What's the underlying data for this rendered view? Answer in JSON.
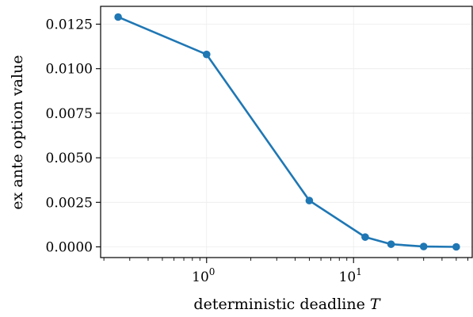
{
  "chart_data": {
    "type": "line",
    "xlabel": "deterministic deadline ",
    "xlabel_symbol": "T",
    "ylabel": "ex ante option value",
    "xscale": "log",
    "xlim": [
      0.19,
      65
    ],
    "ylim": [
      -0.0006,
      0.0135
    ],
    "grid": true,
    "x_major_ticks": [
      {
        "value": 1,
        "base": "10",
        "exp": "0"
      },
      {
        "value": 10,
        "base": "10",
        "exp": "1"
      }
    ],
    "y_ticks": [
      {
        "value": 0.0,
        "label": "0.0000"
      },
      {
        "value": 0.0025,
        "label": "0.0025"
      },
      {
        "value": 0.005,
        "label": "0.0050"
      },
      {
        "value": 0.0075,
        "label": "0.0075"
      },
      {
        "value": 0.01,
        "label": "0.0100"
      },
      {
        "value": 0.0125,
        "label": "0.0125"
      }
    ],
    "series": [
      {
        "color": "#1f77b4",
        "x": [
          0.25,
          1,
          5,
          12,
          18,
          30,
          50
        ],
        "y": [
          0.0129,
          0.0108,
          0.0026,
          0.00055,
          0.00015,
          2e-05,
          0.0
        ]
      }
    ]
  }
}
